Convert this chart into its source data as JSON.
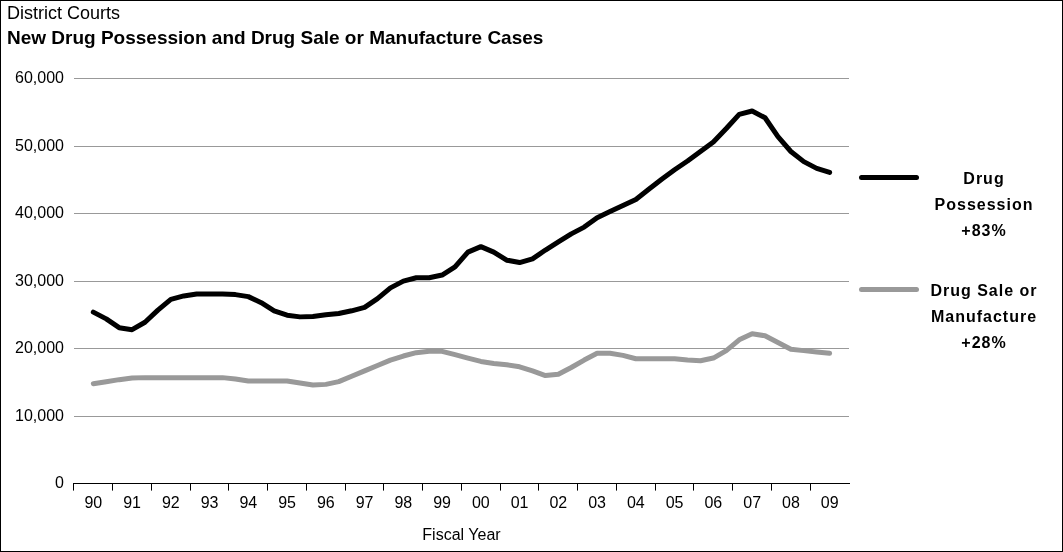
{
  "chart_data": {
    "type": "line",
    "title": "New Drug Possession and Drug Sale or Manufacture Cases",
    "subtitle": "District Courts",
    "xlabel": "Fiscal Year",
    "categories": [
      null,
      "90",
      null,
      null,
      "91",
      null,
      null,
      "92",
      null,
      null,
      "93",
      null,
      null,
      "94",
      null,
      null,
      "95",
      null,
      null,
      "96",
      null,
      null,
      "97",
      null,
      null,
      "98",
      null,
      null,
      "99",
      null,
      null,
      "00",
      null,
      null,
      "01",
      null,
      null,
      "02",
      null,
      null,
      "03",
      null,
      null,
      "04",
      null,
      null,
      "05",
      null,
      null,
      "06",
      null,
      null,
      "07",
      null,
      null,
      "08",
      null,
      null,
      "09",
      null
    ],
    "ylim": [
      0,
      60000
    ],
    "yticks": [
      {
        "value": 0,
        "label": "0"
      },
      {
        "value": 10000,
        "label": "10,000"
      },
      {
        "value": 20000,
        "label": "20,000"
      },
      {
        "value": 30000,
        "label": "30,000"
      },
      {
        "value": 40000,
        "label": "40,000"
      },
      {
        "value": 50000,
        "label": "50,000"
      },
      {
        "value": 60000,
        "label": "60,000"
      }
    ],
    "grid": "y",
    "legend": "right",
    "marker": "none",
    "line_style": "solid",
    "series": [
      {
        "name": "Drug Possession +83%",
        "color": "#000000",
        "values": [
          null,
          25400,
          24400,
          23100,
          22800,
          23900,
          25700,
          27300,
          27800,
          28100,
          28100,
          28100,
          28000,
          27700,
          26800,
          25600,
          24950,
          24700,
          24750,
          25000,
          25200,
          25600,
          26100,
          27400,
          29000,
          30000,
          30500,
          30500,
          30900,
          32100,
          34300,
          35100,
          34300,
          33100,
          32750,
          33300,
          34600,
          35800,
          37000,
          38000,
          39400,
          40300,
          41200,
          42100,
          43600,
          45100,
          46500,
          47800,
          49200,
          50600,
          52600,
          54700,
          55200,
          54200,
          51400,
          49200,
          47700,
          46700,
          46100,
          null
        ]
      },
      {
        "name": "Drug Sale or Manufacture +28%",
        "color": "#999999",
        "values": [
          null,
          14800,
          15100,
          15400,
          15650,
          15700,
          15700,
          15700,
          15700,
          15700,
          15700,
          15700,
          15500,
          15200,
          15200,
          15200,
          15200,
          14900,
          14600,
          14700,
          15100,
          15900,
          16700,
          17500,
          18300,
          18900,
          19400,
          19600,
          19600,
          19100,
          18600,
          18100,
          17800,
          17600,
          17300,
          16700,
          16000,
          16200,
          17200,
          18300,
          19300,
          19300,
          19000,
          18500,
          18500,
          18500,
          18500,
          18300,
          18200,
          18600,
          19700,
          21300,
          22200,
          21900,
          20900,
          19900,
          19700,
          19500,
          19300,
          null
        ]
      }
    ]
  }
}
